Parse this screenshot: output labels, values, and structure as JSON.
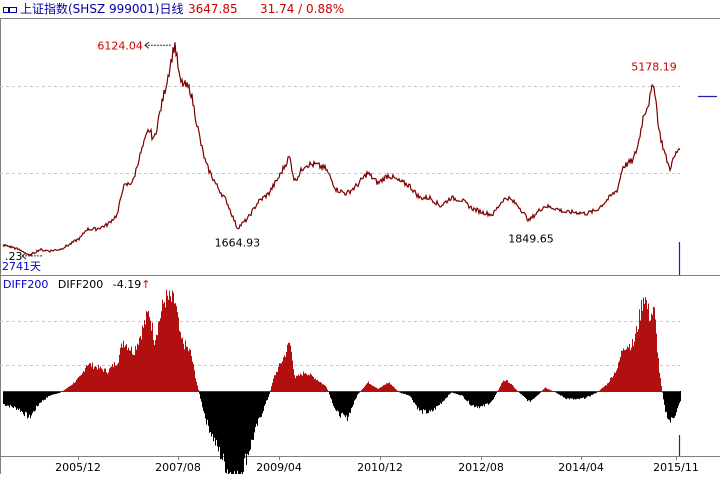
{
  "header": {
    "title": "上证指数(SHSZ 999001)日线",
    "price": "3647.85",
    "change": "31.74 / 0.88%"
  },
  "indicator": {
    "name": "DIFF200",
    "label": "DIFF200",
    "value": "-4.19",
    "arrow": "↑"
  },
  "chart_data": [
    {
      "type": "line",
      "name": "price",
      "annotations": [
        {
          "text": "6124.04",
          "x": "2007/10",
          "y": 6124.04
        },
        {
          "text": "1664.93",
          "x": "2008/10",
          "y": 1664.93
        },
        {
          "text": "1849.65",
          "x": "2013/06",
          "y": 1849.65
        },
        {
          "text": "5178.19",
          "x": "2015/06",
          "y": 5178.19
        },
        {
          "text": ".23",
          "x": "2005/06",
          "y": 998.23
        },
        {
          "text": "2741天",
          "x": "",
          "y": null
        }
      ],
      "x_ticks": [
        "2005/12",
        "2007/08",
        "2009/04",
        "2010/12",
        "2012/08",
        "2014/04",
        "2015/11"
      ],
      "points": [
        [
          "2005/01",
          1260
        ],
        [
          "2005/03",
          1200
        ],
        [
          "2005/05",
          1100
        ],
        [
          "2005/06",
          1000
        ],
        [
          "2005/08",
          1150
        ],
        [
          "2005/10",
          1120
        ],
        [
          "2005/12",
          1160
        ],
        [
          "2006/02",
          1290
        ],
        [
          "2006/04",
          1450
        ],
        [
          "2006/05",
          1640
        ],
        [
          "2006/07",
          1650
        ],
        [
          "2006/09",
          1750
        ],
        [
          "2006/11",
          2000
        ],
        [
          "2006/12",
          2650
        ],
        [
          "2007/02",
          2800
        ],
        [
          "2007/03",
          3300
        ],
        [
          "2007/05",
          4050
        ],
        [
          "2007/06",
          3800
        ],
        [
          "2007/08",
          4950
        ],
        [
          "2007/10",
          6124
        ],
        [
          "2007/11",
          5200
        ],
        [
          "2008/01",
          5000
        ],
        [
          "2008/03",
          3700
        ],
        [
          "2008/04",
          3200
        ],
        [
          "2008/06",
          2700
        ],
        [
          "2008/08",
          2300
        ],
        [
          "2008/10",
          1665
        ],
        [
          "2008/12",
          1900
        ],
        [
          "2009/02",
          2300
        ],
        [
          "2009/04",
          2500
        ],
        [
          "2009/06",
          2900
        ],
        [
          "2009/08",
          3400
        ],
        [
          "2009/09",
          2800
        ],
        [
          "2009/11",
          3200
        ],
        [
          "2010/01",
          3200
        ],
        [
          "2010/03",
          3100
        ],
        [
          "2010/05",
          2600
        ],
        [
          "2010/07",
          2500
        ],
        [
          "2010/09",
          2700
        ],
        [
          "2010/11",
          3000
        ],
        [
          "2011/01",
          2750
        ],
        [
          "2011/03",
          2950
        ],
        [
          "2011/05",
          2800
        ],
        [
          "2011/07",
          2700
        ],
        [
          "2011/09",
          2400
        ],
        [
          "2011/11",
          2400
        ],
        [
          "2012/01",
          2200
        ],
        [
          "2012/03",
          2400
        ],
        [
          "2012/05",
          2350
        ],
        [
          "2012/07",
          2150
        ],
        [
          "2012/09",
          2050
        ],
        [
          "2012/11",
          1990
        ],
        [
          "2013/01",
          2350
        ],
        [
          "2013/02",
          2400
        ],
        [
          "2013/04",
          2200
        ],
        [
          "2013/06",
          1850
        ],
        [
          "2013/08",
          2100
        ],
        [
          "2013/09",
          2200
        ],
        [
          "2013/11",
          2150
        ],
        [
          "2014/01",
          2050
        ],
        [
          "2014/03",
          2050
        ],
        [
          "2014/05",
          2020
        ],
        [
          "2014/07",
          2100
        ],
        [
          "2014/09",
          2350
        ],
        [
          "2014/11",
          2600
        ],
        [
          "2014/12",
          3150
        ],
        [
          "2015/02",
          3300
        ],
        [
          "2015/03",
          3700
        ],
        [
          "2015/04",
          4400
        ],
        [
          "2015/05",
          4700
        ],
        [
          "2015/06",
          5178
        ],
        [
          "2015/07",
          4000
        ],
        [
          "2015/08",
          3500
        ],
        [
          "2015/09",
          3100
        ],
        [
          "2015/10",
          3400
        ],
        [
          "2015/11",
          3648
        ]
      ]
    },
    {
      "type": "bar",
      "name": "DIFF200",
      "points": [
        [
          "2005/01",
          -180
        ],
        [
          "2005/04",
          -250
        ],
        [
          "2005/06",
          -370
        ],
        [
          "2005/08",
          -160
        ],
        [
          "2005/10",
          -60
        ],
        [
          "2005/12",
          -20
        ],
        [
          "2006/02",
          80
        ],
        [
          "2006/04",
          210
        ],
        [
          "2006/05",
          380
        ],
        [
          "2006/07",
          330
        ],
        [
          "2006/09",
          270
        ],
        [
          "2006/11",
          420
        ],
        [
          "2006/12",
          700
        ],
        [
          "2007/02",
          540
        ],
        [
          "2007/03",
          720
        ],
        [
          "2007/05",
          1100
        ],
        [
          "2007/06",
          710
        ],
        [
          "2007/08",
          1280
        ],
        [
          "2007/10",
          1230
        ],
        [
          "2007/11",
          720
        ],
        [
          "2008/01",
          520
        ],
        [
          "2008/02",
          150
        ],
        [
          "2008/03",
          -150
        ],
        [
          "2008/04",
          -420
        ],
        [
          "2008/06",
          -770
        ],
        [
          "2008/08",
          -1080
        ],
        [
          "2008/10",
          -1230
        ],
        [
          "2008/12",
          -850
        ],
        [
          "2009/02",
          -420
        ],
        [
          "2009/04",
          -60
        ],
        [
          "2009/05",
          200
        ],
        [
          "2009/07",
          490
        ],
        [
          "2009/08",
          680
        ],
        [
          "2009/09",
          180
        ],
        [
          "2009/11",
          260
        ],
        [
          "2010/01",
          170
        ],
        [
          "2010/03",
          60
        ],
        [
          "2010/05",
          -300
        ],
        [
          "2010/07",
          -380
        ],
        [
          "2010/09",
          -50
        ],
        [
          "2010/11",
          120
        ],
        [
          "2011/01",
          30
        ],
        [
          "2011/03",
          120
        ],
        [
          "2011/05",
          -20
        ],
        [
          "2011/07",
          -60
        ],
        [
          "2011/09",
          -280
        ],
        [
          "2011/11",
          -300
        ],
        [
          "2012/01",
          -170
        ],
        [
          "2012/03",
          -20
        ],
        [
          "2012/05",
          -60
        ],
        [
          "2012/07",
          -200
        ],
        [
          "2012/09",
          -220
        ],
        [
          "2012/11",
          -130
        ],
        [
          "2013/01",
          150
        ],
        [
          "2013/02",
          130
        ],
        [
          "2013/04",
          -20
        ],
        [
          "2013/06",
          -150
        ],
        [
          "2013/08",
          -30
        ],
        [
          "2013/09",
          50
        ],
        [
          "2013/11",
          -20
        ],
        [
          "2014/01",
          -100
        ],
        [
          "2014/03",
          -120
        ],
        [
          "2014/05",
          -90
        ],
        [
          "2014/07",
          -20
        ],
        [
          "2014/09",
          100
        ],
        [
          "2014/11",
          330
        ],
        [
          "2014/12",
          620
        ],
        [
          "2015/02",
          650
        ],
        [
          "2015/03",
          960
        ],
        [
          "2015/04",
          1360
        ],
        [
          "2015/05",
          1050
        ],
        [
          "2015/06",
          1090
        ],
        [
          "2015/07",
          240
        ],
        [
          "2015/08",
          -250
        ],
        [
          "2015/09",
          -430
        ],
        [
          "2015/10",
          -320
        ],
        [
          "2015/11",
          -150
        ]
      ]
    }
  ],
  "colors": {
    "up": "#b01010",
    "down": "#000000",
    "axis_text": "#000000",
    "header_red": "#cc0000",
    "title_blue": "#0000a0",
    "label_blue": "#0000cc",
    "grid": "#c8c8c8"
  }
}
